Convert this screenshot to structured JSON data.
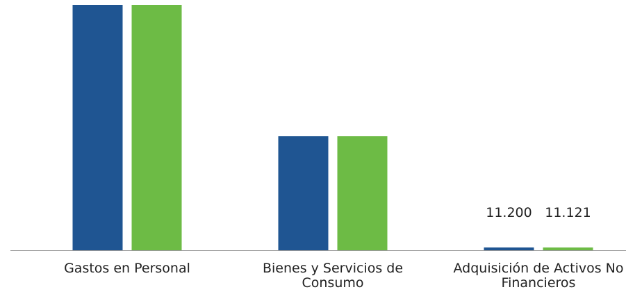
{
  "chart_data": {
    "type": "bar",
    "categories": [
      "Gastos en Personal",
      "Bienes y Servicios de Consumo",
      "Adquisición de Activos No Financieros"
    ],
    "series": [
      {
        "color": "#1f5592",
        "values": [
          988000,
          459000,
          11200
        ],
        "value_labels": [
          null,
          null,
          "11.200"
        ]
      },
      {
        "color": "#6dbb45",
        "values": [
          988000,
          459000,
          11121
        ],
        "value_labels": [
          null,
          null,
          "11.121"
        ]
      }
    ]
  }
}
